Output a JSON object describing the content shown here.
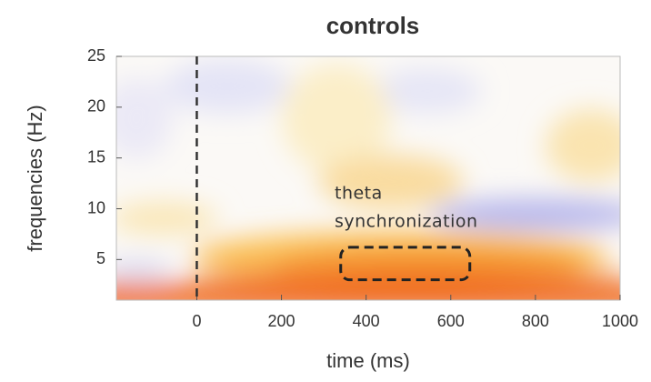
{
  "chart_data": {
    "type": "heatmap",
    "title": "controls",
    "xlabel": "time (ms)",
    "ylabel": "frequencies (Hz)",
    "xlim": [
      -190,
      1000
    ],
    "xticks": [
      0,
      200,
      400,
      600,
      800,
      1000
    ],
    "ylim": [
      1,
      25
    ],
    "yticks": [
      5,
      10,
      15,
      20,
      25
    ],
    "vline": 0,
    "annotation": [
      "theta",
      "synchronization"
    ],
    "box": {
      "xlim": [
        340,
        645
      ],
      "ylim": [
        3,
        6.2
      ]
    }
  }
}
